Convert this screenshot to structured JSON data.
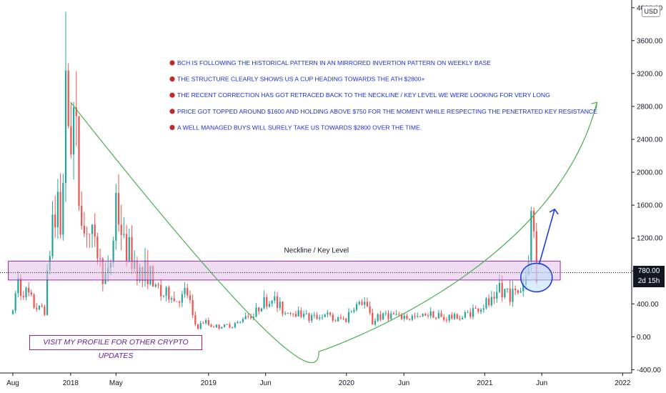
{
  "chart_data": {
    "type": "candlestick",
    "currency_button": "USD",
    "current_price_label": "780.00",
    "countdown_label": "2d 15h",
    "y_ticks": [
      "4000.00",
      "3600.00",
      "3200.00",
      "2800.00",
      "2400.00",
      "2000.00",
      "1600.00",
      "1200.00",
      "800.00",
      "400.00",
      "0.00",
      "-400.00"
    ],
    "y_tick_values": [
      4000,
      3600,
      3200,
      2800,
      2400,
      2000,
      1600,
      1200,
      800,
      400,
      0,
      -400
    ],
    "ylim": [
      -440,
      4050
    ],
    "x_ticks": [
      "Aug",
      "2018",
      "May",
      "2019",
      "Jun",
      "2020",
      "Jun",
      "2021",
      "Jun",
      "2022"
    ],
    "x_tick_dates": [
      "2017-08-01",
      "2018-01-01",
      "2018-05-01",
      "2019-01-01",
      "2019-06-01",
      "2020-01-01",
      "2020-06-01",
      "2021-01-01",
      "2021-06-01",
      "2022-01-01"
    ],
    "xlim": [
      "2017-06-28",
      "2022-01-25"
    ],
    "annotations": [
      "BCH IS FOLLOWING THE HISTORICAL PATTERN IN AN MIRRORED INVERTION PATTERN ON WEEKLY BASE",
      "THE STRUCTURE CLEARLY SHOWS US A CUP HEADING TOWARDS THE ATH $2800+",
      "THE RECENT CORRECTION HAS GOT RETRACED BACK TO THE NECKLINE / KEY LEVEL WE WERE LOOKING FOR VERY LONG",
      "PRICE GOT TOPPED AROUND $1600 AND HOLDING ABOVE $750 FOR THE MOMENT WHILE RESPECTING THE PENETRATED KEY RESISTANCE",
      "A WELL MANAGED BUYS WILL SURELY TAKE US TOWARDS $2800 OVER THE TIME."
    ],
    "neckline_label": "Neckline / Key Level",
    "key_level_zone": [
      690,
      920
    ],
    "current_price": 780,
    "promo_text": "VISIT MY PROFILE FOR OTHER CRYPTO UPDATES",
    "colors": {
      "up": "#26a69a",
      "down": "#ef5350",
      "zone": "#e1bee7",
      "zone_border": "#9c27b0",
      "note_text": "#1e2fd6",
      "bullet": "#c62828",
      "cup": "#4caf50",
      "projection": "#1e3fd6"
    },
    "weekly_closes": [
      [
        "2017-08-01",
        300
      ],
      [
        "2017-08-15",
        620
      ],
      [
        "2017-08-29",
        560
      ],
      [
        "2017-09-12",
        460
      ],
      [
        "2017-09-26",
        420
      ],
      [
        "2017-10-10",
        330
      ],
      [
        "2017-10-24",
        320
      ],
      [
        "2017-11-07",
        1100
      ],
      [
        "2017-11-21",
        1600
      ],
      [
        "2017-12-05",
        1500
      ],
      [
        "2017-12-19",
        2800
      ],
      [
        "2018-01-02",
        2700
      ],
      [
        "2018-01-16",
        2300
      ],
      [
        "2018-01-30",
        1450
      ],
      [
        "2018-02-13",
        1500
      ],
      [
        "2018-02-27",
        1200
      ],
      [
        "2018-03-13",
        1050
      ],
      [
        "2018-03-27",
        730
      ],
      [
        "2018-04-10",
        720
      ],
      [
        "2018-04-24",
        1400
      ],
      [
        "2018-05-08",
        1600
      ],
      [
        "2018-05-22",
        1100
      ],
      [
        "2018-06-05",
        1050
      ],
      [
        "2018-06-19",
        820
      ],
      [
        "2018-07-03",
        780
      ],
      [
        "2018-07-17",
        800
      ],
      [
        "2018-07-31",
        750
      ],
      [
        "2018-08-14",
        560
      ],
      [
        "2018-08-28",
        600
      ],
      [
        "2018-09-11",
        520
      ],
      [
        "2018-09-25",
        510
      ],
      [
        "2018-10-09",
        480
      ],
      [
        "2018-10-23",
        450
      ],
      [
        "2018-11-06",
        560
      ],
      [
        "2018-11-20",
        230
      ],
      [
        "2018-12-04",
        110
      ],
      [
        "2018-12-18",
        180
      ],
      [
        "2019-01-01",
        165
      ],
      [
        "2019-01-15",
        130
      ],
      [
        "2019-01-29",
        120
      ],
      [
        "2019-02-12",
        130
      ],
      [
        "2019-02-26",
        130
      ],
      [
        "2019-03-12",
        140
      ],
      [
        "2019-03-26",
        170
      ],
      [
        "2019-04-09",
        300
      ],
      [
        "2019-04-23",
        270
      ],
      [
        "2019-05-07",
        310
      ],
      [
        "2019-05-21",
        420
      ],
      [
        "2019-06-04",
        400
      ],
      [
        "2019-06-18",
        470
      ],
      [
        "2019-07-02",
        410
      ],
      [
        "2019-07-16",
        330
      ],
      [
        "2019-07-30",
        330
      ],
      [
        "2019-08-13",
        300
      ],
      [
        "2019-08-27",
        290
      ],
      [
        "2019-09-10",
        300
      ],
      [
        "2019-09-24",
        220
      ],
      [
        "2019-10-08",
        230
      ],
      [
        "2019-10-22",
        280
      ],
      [
        "2019-11-05",
        290
      ],
      [
        "2019-11-19",
        230
      ],
      [
        "2019-12-03",
        215
      ],
      [
        "2019-12-17",
        200
      ],
      [
        "2019-12-31",
        205
      ],
      [
        "2020-01-14",
        340
      ],
      [
        "2020-01-28",
        370
      ],
      [
        "2020-02-11",
        420
      ],
      [
        "2020-02-25",
        330
      ],
      [
        "2020-03-10",
        180
      ],
      [
        "2020-03-24",
        240
      ],
      [
        "2020-04-07",
        250
      ],
      [
        "2020-04-21",
        250
      ],
      [
        "2020-05-05",
        240
      ],
      [
        "2020-05-19",
        235
      ],
      [
        "2020-06-02",
        240
      ],
      [
        "2020-06-16",
        230
      ],
      [
        "2020-06-30",
        225
      ],
      [
        "2020-07-14",
        225
      ],
      [
        "2020-07-28",
        300
      ],
      [
        "2020-08-11",
        290
      ],
      [
        "2020-08-25",
        270
      ],
      [
        "2020-09-08",
        225
      ],
      [
        "2020-09-22",
        230
      ],
      [
        "2020-10-06",
        240
      ],
      [
        "2020-10-20",
        255
      ],
      [
        "2020-11-03",
        250
      ],
      [
        "2020-11-17",
        280
      ],
      [
        "2020-12-01",
        300
      ],
      [
        "2020-12-15",
        330
      ],
      [
        "2020-12-29",
        380
      ],
      [
        "2021-01-12",
        440
      ],
      [
        "2021-01-26",
        420
      ],
      [
        "2021-02-09",
        580
      ],
      [
        "2021-02-23",
        510
      ],
      [
        "2021-03-09",
        510
      ],
      [
        "2021-03-23",
        530
      ],
      [
        "2021-04-06",
        620
      ],
      [
        "2021-04-20",
        800
      ],
      [
        "2021-04-27",
        1000
      ],
      [
        "2021-05-04",
        1400
      ],
      [
        "2021-05-11",
        1100
      ],
      [
        "2021-05-18",
        780
      ]
    ]
  }
}
